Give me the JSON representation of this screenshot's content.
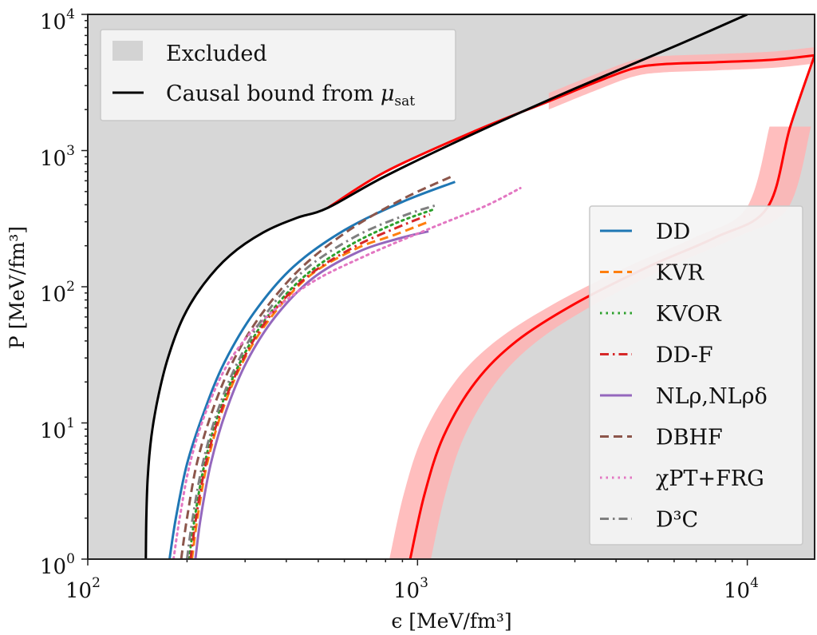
{
  "chart_data": {
    "type": "line",
    "title": "",
    "xlabel": "ϵ [MeV/fm³]",
    "ylabel": "P [MeV/fm³]",
    "xscale": "log",
    "yscale": "log",
    "xlim": [
      100,
      16000
    ],
    "ylim": [
      1,
      10000
    ],
    "grid": false,
    "x_ticks": [
      {
        "value": 100,
        "base": "10",
        "exp": "2"
      },
      {
        "value": 1000,
        "base": "10",
        "exp": "3"
      },
      {
        "value": 10000,
        "base": "10",
        "exp": "4"
      }
    ],
    "y_ticks": [
      {
        "value": 1,
        "base": "10",
        "exp": "0"
      },
      {
        "value": 10,
        "base": "10",
        "exp": "1"
      },
      {
        "value": 100,
        "base": "10",
        "exp": "2"
      },
      {
        "value": 1000,
        "base": "10",
        "exp": "3"
      },
      {
        "value": 10000,
        "base": "10",
        "exp": "4"
      }
    ],
    "colors": {
      "excluded": "#d7d7d7",
      "allowed": "#ffffff",
      "causal": "#000000",
      "band_line": "#ff0000",
      "band_fill": "#ffb3b3"
    },
    "excluded_region": {
      "label": "Excluded",
      "upper_boundary": [
        [
          535,
          380
        ],
        [
          800,
          700
        ],
        [
          1500,
          1400
        ],
        [
          2500,
          2300
        ],
        [
          3500,
          3200
        ],
        [
          4500,
          4000
        ],
        [
          5500,
          4300
        ],
        [
          8000,
          4450
        ],
        [
          12000,
          4650
        ],
        [
          16000,
          5000
        ]
      ],
      "lower_boundary": [
        [
          950,
          1
        ],
        [
          1050,
          3
        ],
        [
          1200,
          8
        ],
        [
          1500,
          20
        ],
        [
          2000,
          40
        ],
        [
          3000,
          75
        ],
        [
          5000,
          140
        ],
        [
          8000,
          230
        ],
        [
          11500,
          380
        ],
        [
          13500,
          1500
        ],
        [
          16000,
          5000
        ]
      ]
    },
    "causal_bound": {
      "label": "Causal bound from μsat",
      "label_main": "Causal bound from ",
      "label_mu": "μ",
      "label_sub": "sat",
      "points": [
        [
          150,
          1
        ],
        [
          150.5,
          2
        ],
        [
          152,
          4
        ],
        [
          156,
          8
        ],
        [
          163,
          15
        ],
        [
          175,
          30
        ],
        [
          195,
          60
        ],
        [
          225,
          105
        ],
        [
          270,
          170
        ],
        [
          340,
          250
        ],
        [
          430,
          320
        ],
        [
          535,
          380
        ],
        [
          800,
          650
        ],
        [
          1500,
          1350
        ],
        [
          3000,
          2850
        ],
        [
          6000,
          5800
        ],
        [
          10000,
          10000
        ]
      ]
    },
    "band_uncertainty": {
      "upper_width_dex": 0.06,
      "lower_width_dex": 0.09
    },
    "legend_top": {
      "position": "top-left",
      "items": [
        {
          "label": "Excluded",
          "kind": "patch"
        },
        {
          "label": "Causal bound from μsat",
          "kind": "line"
        }
      ]
    },
    "legend_right": {
      "position": "center-right",
      "items": [
        {
          "label": "DD",
          "color": "#1f77b4",
          "dash": "solid"
        },
        {
          "label": "KVR",
          "color": "#ff7f0e",
          "dash": "dashed"
        },
        {
          "label": "KVOR",
          "color": "#2ca02c",
          "dash": "dotted"
        },
        {
          "label": "DD-F",
          "color": "#d62728",
          "dash": "dashdot"
        },
        {
          "label": "NLρ,NLρδ",
          "color": "#9467bd",
          "dash": "solid"
        },
        {
          "label": "DBHF",
          "color": "#8c564b",
          "dash": "dashed"
        },
        {
          "label": "χPT+FRG",
          "color": "#e377c2",
          "dash": "dotted"
        },
        {
          "label": "D³C",
          "color": "#7f7f7f",
          "dash": "dashdot"
        }
      ]
    },
    "series": [
      {
        "name": "DD",
        "color": "#1f77b4",
        "dash": "solid",
        "points": [
          [
            177,
            1
          ],
          [
            185,
            2
          ],
          [
            200,
            5
          ],
          [
            225,
            12
          ],
          [
            260,
            28
          ],
          [
            320,
            65
          ],
          [
            420,
            140
          ],
          [
            600,
            260
          ],
          [
            900,
            420
          ],
          [
            1300,
            590
          ]
        ]
      },
      {
        "name": "KVR",
        "color": "#ff7f0e",
        "dash": "dashed",
        "points": [
          [
            207,
            1
          ],
          [
            215,
            2
          ],
          [
            230,
            5
          ],
          [
            255,
            12
          ],
          [
            295,
            28
          ],
          [
            360,
            60
          ],
          [
            470,
            120
          ],
          [
            650,
            190
          ],
          [
            850,
            240
          ],
          [
            1080,
            300
          ]
        ]
      },
      {
        "name": "KVOR",
        "color": "#2ca02c",
        "dash": "dotted",
        "points": [
          [
            203,
            1
          ],
          [
            211,
            2
          ],
          [
            226,
            5
          ],
          [
            250,
            12
          ],
          [
            290,
            28
          ],
          [
            350,
            60
          ],
          [
            455,
            120
          ],
          [
            620,
            200
          ],
          [
            850,
            290
          ],
          [
            1120,
            370
          ]
        ]
      },
      {
        "name": "DD-F",
        "color": "#d62728",
        "dash": "dashdot",
        "points": [
          [
            205,
            1
          ],
          [
            213,
            2
          ],
          [
            228,
            5
          ],
          [
            253,
            12
          ],
          [
            293,
            28
          ],
          [
            355,
            60
          ],
          [
            462,
            118
          ],
          [
            640,
            195
          ],
          [
            860,
            270
          ],
          [
            1090,
            340
          ]
        ]
      },
      {
        "name": "NLρ,NLρδ",
        "color": "#9467bd",
        "dash": "solid",
        "points": [
          [
            212,
            1
          ],
          [
            220,
            2
          ],
          [
            236,
            5
          ],
          [
            262,
            12
          ],
          [
            303,
            28
          ],
          [
            370,
            60
          ],
          [
            480,
            115
          ],
          [
            660,
            180
          ],
          [
            870,
            225
          ],
          [
            1080,
            255
          ]
        ]
      },
      {
        "name": "DBHF",
        "color": "#8c564b",
        "dash": "dashed",
        "points": [
          [
            192,
            1
          ],
          [
            200,
            2
          ],
          [
            214,
            5
          ],
          [
            238,
            12
          ],
          [
            275,
            28
          ],
          [
            335,
            62
          ],
          [
            440,
            135
          ],
          [
            620,
            260
          ],
          [
            900,
            440
          ],
          [
            1260,
            640
          ]
        ]
      },
      {
        "name": "χPT+FRG",
        "color": "#e377c2",
        "dash": "dotted",
        "points": [
          [
            182,
            1
          ],
          [
            190,
            2
          ],
          [
            204,
            5
          ],
          [
            228,
            12
          ],
          [
            268,
            28
          ],
          [
            335,
            55
          ],
          [
            470,
            105
          ],
          [
            700,
            170
          ],
          [
            1100,
            270
          ],
          [
            1600,
            390
          ],
          [
            2050,
            530
          ]
        ]
      },
      {
        "name": "D³C",
        "color": "#7f7f7f",
        "dash": "dashdot",
        "points": [
          [
            200,
            1
          ],
          [
            208,
            2
          ],
          [
            223,
            5
          ],
          [
            247,
            12
          ],
          [
            285,
            28
          ],
          [
            345,
            62
          ],
          [
            450,
            130
          ],
          [
            640,
            230
          ],
          [
            900,
            330
          ],
          [
            1150,
            400
          ]
        ]
      }
    ]
  }
}
